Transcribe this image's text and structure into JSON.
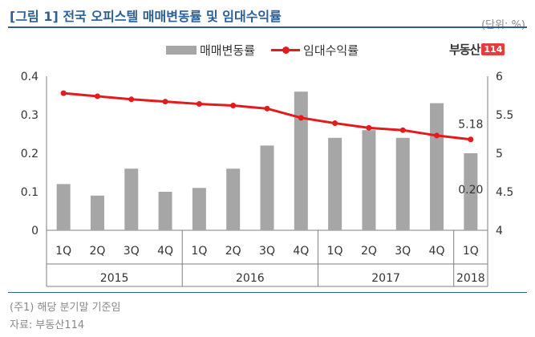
{
  "header": {
    "title": "[그림 1] 전국 오피스텔 매매변동률 및 임대수익률",
    "unit": "(단위: %)"
  },
  "brand": {
    "name": "부동산",
    "number": "114"
  },
  "colors": {
    "bar": "#a6a6a6",
    "line": "#e41a1c",
    "accent": "#2a6096"
  },
  "chart_data": {
    "type": "bar",
    "categories": [
      "1Q",
      "2Q",
      "3Q",
      "4Q",
      "1Q",
      "2Q",
      "3Q",
      "4Q",
      "1Q",
      "2Q",
      "3Q",
      "4Q",
      "1Q"
    ],
    "years": [
      {
        "label": "2015",
        "span": 4
      },
      {
        "label": "2016",
        "span": 4
      },
      {
        "label": "2017",
        "span": 4
      },
      {
        "label": "2018",
        "span": 1
      }
    ],
    "series": [
      {
        "name": "매매변동률",
        "type": "bar",
        "axis": "left",
        "values": [
          0.12,
          0.09,
          0.16,
          0.1,
          0.11,
          0.16,
          0.22,
          0.36,
          0.24,
          0.26,
          0.24,
          0.33,
          0.2
        ]
      },
      {
        "name": "임대수익률",
        "type": "line",
        "axis": "right",
        "values": [
          5.78,
          5.74,
          5.7,
          5.67,
          5.64,
          5.62,
          5.58,
          5.46,
          5.39,
          5.33,
          5.3,
          5.23,
          5.18
        ]
      }
    ],
    "ylim_left": [
      0,
      0.4
    ],
    "yticks_left": [
      "0.4",
      "0.3",
      "0.2",
      "0.1",
      "0"
    ],
    "ylim_right": [
      4,
      6
    ],
    "yticks_right": [
      "6",
      "5.5",
      "5",
      "4.5",
      "4"
    ],
    "annotations": {
      "bar_last": "0.20",
      "line_last": "5.18"
    }
  },
  "notes": {
    "note": "(주1) 해당 분기말 기준임",
    "source": "자료: 부동산114"
  }
}
